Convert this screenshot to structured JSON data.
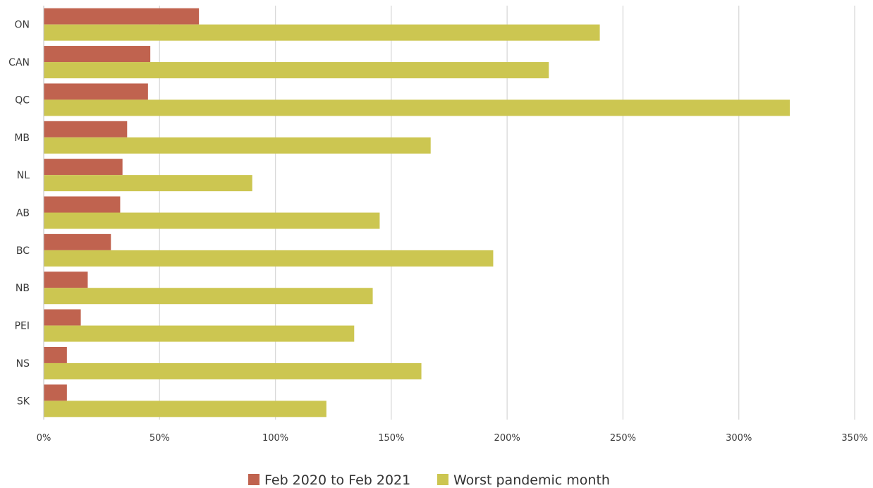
{
  "chart_data": {
    "type": "bar",
    "orientation": "horizontal",
    "title": "",
    "xlabel": "",
    "ylabel": "",
    "categories": [
      "ON",
      "CAN",
      "QC",
      "MB",
      "NL",
      "AB",
      "BC",
      "NB",
      "PEI",
      "NS",
      "SK"
    ],
    "series": [
      {
        "name": "Feb 2020 to Feb 2021",
        "color": "#c0634f",
        "values": [
          67,
          46,
          45,
          36,
          34,
          33,
          29,
          19,
          16,
          10,
          10
        ]
      },
      {
        "name": "Worst pandemic month",
        "color": "#ccc651",
        "values": [
          240,
          218,
          322,
          167,
          90,
          145,
          194,
          142,
          134,
          163,
          122
        ]
      }
    ],
    "xlim": [
      0,
      350
    ],
    "x_ticks": [
      0,
      50,
      100,
      150,
      200,
      250,
      300,
      350
    ],
    "x_tick_labels": [
      "0%",
      "50%",
      "100%",
      "150%",
      "200%",
      "250%",
      "300%",
      "350%"
    ],
    "grid": "vertical",
    "legend_position": "bottom-center"
  }
}
